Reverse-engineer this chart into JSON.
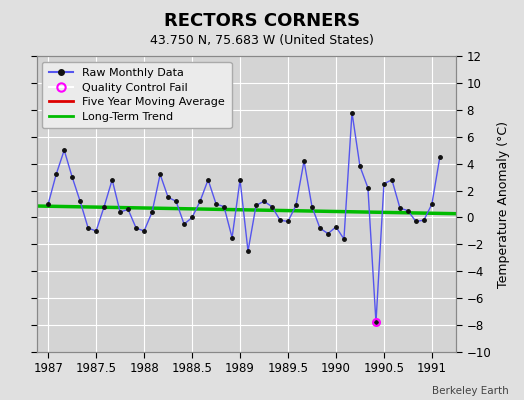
{
  "title": "RECTORS CORNERS",
  "subtitle": "43.750 N, 75.683 W (United States)",
  "ylabel": "Temperature Anomaly (°C)",
  "xlabel_credit": "Berkeley Earth",
  "ylim": [
    -10,
    12
  ],
  "yticks": [
    -10,
    -8,
    -6,
    -4,
    -2,
    0,
    2,
    4,
    6,
    8,
    10,
    12
  ],
  "xlim": [
    1986.88,
    1991.25
  ],
  "xticks": [
    1987,
    1987.5,
    1988,
    1988.5,
    1989,
    1989.5,
    1990,
    1990.5,
    1991
  ],
  "background_color": "#e0e0e0",
  "plot_bg_color": "#d4d4d4",
  "grid_color": "#ffffff",
  "line_color": "#5555ee",
  "marker_color": "#111111",
  "trend_color": "#00bb00",
  "moving_avg_color": "#dd0000",
  "qc_fail_color": "#ff00ff",
  "raw_data": {
    "x": [
      1987.0,
      1987.083,
      1987.167,
      1987.25,
      1987.333,
      1987.417,
      1987.5,
      1987.583,
      1987.667,
      1987.75,
      1987.833,
      1987.917,
      1988.0,
      1988.083,
      1988.167,
      1988.25,
      1988.333,
      1988.417,
      1988.5,
      1988.583,
      1988.667,
      1988.75,
      1988.833,
      1988.917,
      1989.0,
      1989.083,
      1989.167,
      1989.25,
      1989.333,
      1989.417,
      1989.5,
      1989.583,
      1989.667,
      1989.75,
      1989.833,
      1989.917,
      1990.0,
      1990.083,
      1990.167,
      1990.25,
      1990.333,
      1990.417,
      1990.5,
      1990.583,
      1990.667,
      1990.75,
      1990.833,
      1990.917,
      1991.0,
      1991.083
    ],
    "y": [
      1.0,
      3.2,
      5.0,
      3.0,
      1.2,
      -0.8,
      -1.0,
      0.8,
      2.8,
      0.4,
      0.6,
      -0.8,
      -1.0,
      0.4,
      3.2,
      1.5,
      1.2,
      -0.5,
      0.0,
      1.2,
      2.8,
      1.0,
      0.8,
      -1.5,
      2.8,
      -2.5,
      0.9,
      1.2,
      0.8,
      -0.2,
      -0.3,
      0.9,
      4.2,
      0.8,
      -0.8,
      -1.2,
      -0.7,
      -1.6,
      7.8,
      3.8,
      2.2,
      -7.8,
      2.5,
      2.8,
      0.7,
      0.5,
      -0.3,
      -0.2,
      1.0,
      4.5
    ]
  },
  "qc_fail_points": {
    "x": [
      1990.417
    ],
    "y": [
      -7.8
    ]
  },
  "trend_line": {
    "x": [
      1986.88,
      1991.25
    ],
    "y": [
      0.85,
      0.28
    ]
  }
}
